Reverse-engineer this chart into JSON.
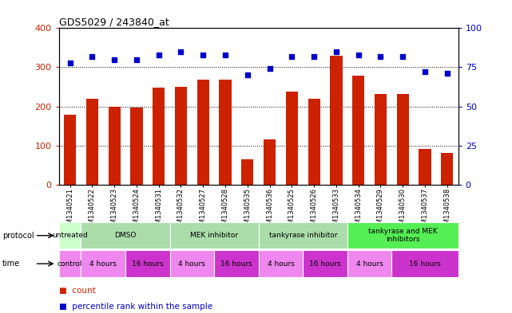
{
  "title": "GDS5029 / 243840_at",
  "samples": [
    "GSM1340521",
    "GSM1340522",
    "GSM1340523",
    "GSM1340524",
    "GSM1340531",
    "GSM1340532",
    "GSM1340527",
    "GSM1340528",
    "GSM1340535",
    "GSM1340536",
    "GSM1340525",
    "GSM1340526",
    "GSM1340533",
    "GSM1340534",
    "GSM1340529",
    "GSM1340530",
    "GSM1340537",
    "GSM1340538"
  ],
  "bar_values": [
    178,
    220,
    200,
    198,
    248,
    250,
    268,
    268,
    65,
    115,
    238,
    220,
    330,
    278,
    232,
    232,
    92,
    82
  ],
  "dot_values": [
    78,
    82,
    80,
    80,
    83,
    85,
    83,
    83,
    70,
    74,
    82,
    82,
    85,
    83,
    82,
    82,
    72,
    71
  ],
  "bar_color": "#cc2200",
  "dot_color": "#0000cc",
  "ylim_left": [
    0,
    400
  ],
  "ylim_right": [
    0,
    100
  ],
  "yticks_left": [
    0,
    100,
    200,
    300,
    400
  ],
  "yticks_right": [
    0,
    25,
    50,
    75,
    100
  ],
  "protocol_groups": [
    {
      "label": "untreated",
      "start": 0,
      "end": 1,
      "color": "#ccffcc"
    },
    {
      "label": "DMSO",
      "start": 1,
      "end": 5,
      "color": "#99ee99"
    },
    {
      "label": "MEK inhibitor",
      "start": 5,
      "end": 9,
      "color": "#99ee99"
    },
    {
      "label": "tankyrase inhibitor",
      "start": 9,
      "end": 13,
      "color": "#99ee99"
    },
    {
      "label": "tankyrase and MEK\ninhibitors",
      "start": 13,
      "end": 18,
      "color": "#44ee44"
    }
  ],
  "time_groups": [
    {
      "label": "control",
      "start": 0,
      "end": 1
    },
    {
      "label": "4 hours",
      "start": 1,
      "end": 3
    },
    {
      "label": "16 hours",
      "start": 3,
      "end": 5
    },
    {
      "label": "4 hours",
      "start": 5,
      "end": 7
    },
    {
      "label": "16 hours",
      "start": 7,
      "end": 9
    },
    {
      "label": "4 hours",
      "start": 9,
      "end": 11
    },
    {
      "label": "16 hours",
      "start": 11,
      "end": 13
    },
    {
      "label": "4 hours",
      "start": 13,
      "end": 15
    },
    {
      "label": "16 hours",
      "start": 15,
      "end": 18
    }
  ],
  "protocol_label_color_untreated": "#ccffcc",
  "protocol_label_color_normal": "#aaddaa",
  "protocol_label_color_bright": "#55ee55",
  "time_color_light": "#ee88ee",
  "time_color_dark": "#cc33cc",
  "tick_color_left": "#cc2200",
  "tick_color_right": "#0000cc",
  "background_color": "#ffffff"
}
